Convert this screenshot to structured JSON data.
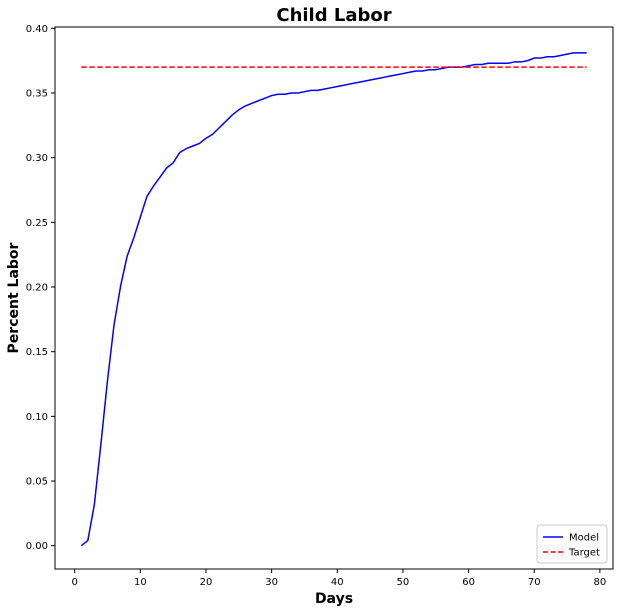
{
  "chart_data": {
    "type": "line",
    "title": "Child Labor",
    "xlabel": "Days",
    "ylabel": "Percent Labor",
    "xlim": [
      -3,
      82
    ],
    "ylim": [
      -0.018,
      0.401
    ],
    "xticks": [
      0,
      10,
      20,
      30,
      40,
      50,
      60,
      70,
      80
    ],
    "yticks": [
      0.0,
      0.05,
      0.1,
      0.15,
      0.2,
      0.25,
      0.3,
      0.35,
      0.4
    ],
    "xtick_labels": [
      "0",
      "10",
      "20",
      "30",
      "40",
      "50",
      "60",
      "70",
      "80"
    ],
    "ytick_labels": [
      "0.00",
      "0.05",
      "0.10",
      "0.15",
      "0.20",
      "0.25",
      "0.30",
      "0.35",
      "0.40"
    ],
    "grid": false,
    "legend_position": "lower-right",
    "series": [
      {
        "name": "Model",
        "color": "#0000ff",
        "style": "solid",
        "x": [
          1,
          2,
          3,
          4,
          5,
          6,
          7,
          8,
          9,
          10,
          11,
          12,
          13,
          14,
          15,
          16,
          17,
          18,
          19,
          20,
          21,
          22,
          23,
          24,
          25,
          26,
          27,
          28,
          29,
          30,
          31,
          32,
          33,
          34,
          35,
          36,
          37,
          38,
          39,
          40,
          41,
          42,
          43,
          44,
          45,
          46,
          47,
          48,
          49,
          50,
          51,
          52,
          53,
          54,
          55,
          56,
          57,
          58,
          59,
          60,
          61,
          62,
          63,
          64,
          65,
          66,
          67,
          68,
          69,
          70,
          71,
          72,
          73,
          74,
          75,
          76,
          77,
          78
        ],
        "y": [
          0.0,
          0.004,
          0.032,
          0.079,
          0.128,
          0.171,
          0.201,
          0.224,
          0.238,
          0.254,
          0.27,
          0.278,
          0.285,
          0.292,
          0.296,
          0.304,
          0.307,
          0.309,
          0.311,
          0.315,
          0.318,
          0.323,
          0.328,
          0.333,
          0.337,
          0.34,
          0.342,
          0.344,
          0.346,
          0.348,
          0.349,
          0.349,
          0.35,
          0.35,
          0.351,
          0.352,
          0.352,
          0.353,
          0.354,
          0.355,
          0.356,
          0.357,
          0.358,
          0.359,
          0.36,
          0.361,
          0.362,
          0.363,
          0.364,
          0.365,
          0.366,
          0.367,
          0.367,
          0.368,
          0.368,
          0.369,
          0.37,
          0.37,
          0.37,
          0.371,
          0.372,
          0.372,
          0.373,
          0.373,
          0.373,
          0.373,
          0.374,
          0.374,
          0.375,
          0.377,
          0.377,
          0.378,
          0.378,
          0.379,
          0.38,
          0.381,
          0.381,
          0.381
        ]
      },
      {
        "name": "Target",
        "color": "#ff0000",
        "style": "dashed",
        "x": [
          1,
          78
        ],
        "y": [
          0.37,
          0.37
        ]
      }
    ]
  }
}
